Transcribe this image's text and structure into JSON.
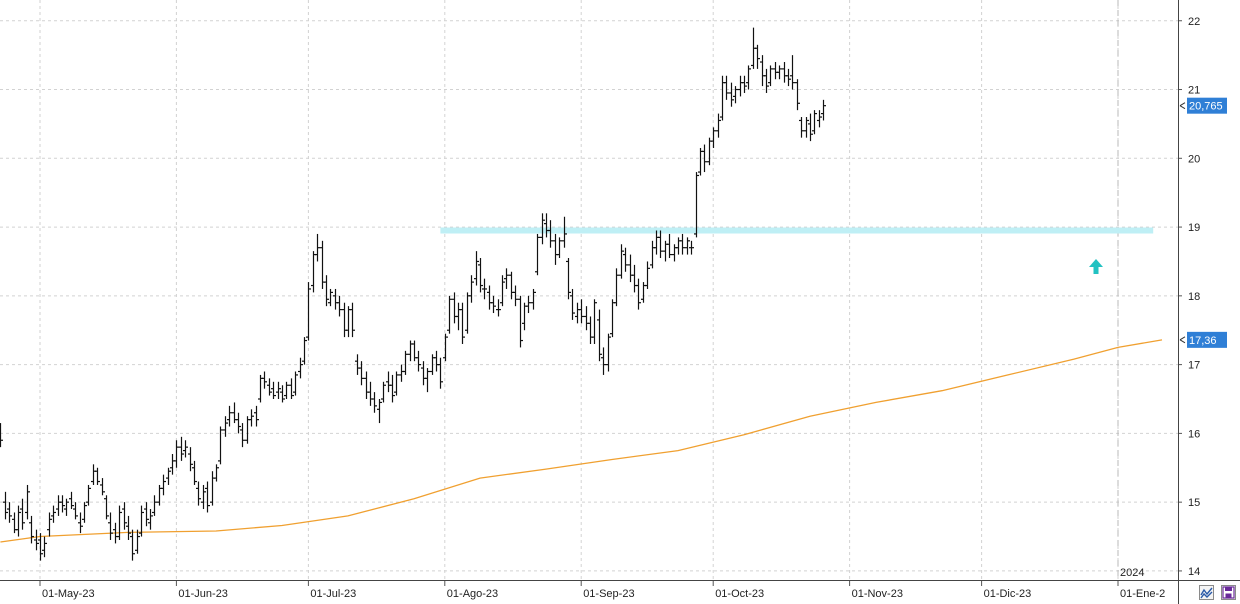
{
  "chart_data": {
    "type": "ohlc",
    "title": "",
    "xlabel": "",
    "ylabel": "",
    "ylim": [
      13.65,
      22.2
    ],
    "y_ticks": [
      14,
      15,
      16,
      17,
      18,
      19,
      20,
      21,
      22
    ],
    "grid": true,
    "x_ticks": [
      {
        "day": 0,
        "label": "01-May-23"
      },
      {
        "day": 31,
        "label": "01-Jun-23"
      },
      {
        "day": 61,
        "label": "01-Jul-23"
      },
      {
        "day": 92,
        "label": "01-Ago-23"
      },
      {
        "day": 123,
        "label": "01-Sep-23"
      },
      {
        "day": 153,
        "label": "01-Oct-23"
      },
      {
        "day": 184,
        "label": "01-Nov-23"
      },
      {
        "day": 214,
        "label": "01-Dic-23"
      },
      {
        "day": 245,
        "label": "01-Ene-2"
      }
    ],
    "year_marker": {
      "day": 245,
      "label": "2024"
    },
    "last_price": {
      "value": 20.765,
      "label": "20,765",
      "color": "#2f7fd6"
    },
    "ma_last": {
      "value": 17.36,
      "label": "17,36",
      "color": "#2f7fd6"
    },
    "resistance": {
      "value": 18.95,
      "from_day": 91,
      "to_day": 253,
      "color": "#bfeff5"
    },
    "signal_arrow": {
      "day": 240,
      "value": 18.42,
      "color": "#22c2c2"
    },
    "moving_average": {
      "color": "#f0a030",
      "points": [
        [
          -9,
          14.42
        ],
        [
          0,
          14.5
        ],
        [
          20,
          14.56
        ],
        [
          40,
          14.58
        ],
        [
          55,
          14.66
        ],
        [
          70,
          14.8
        ],
        [
          85,
          15.05
        ],
        [
          100,
          15.35
        ],
        [
          115,
          15.48
        ],
        [
          130,
          15.62
        ],
        [
          145,
          15.75
        ],
        [
          160,
          15.98
        ],
        [
          175,
          16.25
        ],
        [
          190,
          16.45
        ],
        [
          205,
          16.62
        ],
        [
          220,
          16.85
        ],
        [
          235,
          17.08
        ],
        [
          245,
          17.25
        ],
        [
          255,
          17.36
        ]
      ]
    },
    "ohlc": [
      [
        -9,
        16.05,
        16.15,
        15.8,
        15.9
      ],
      [
        -8,
        15.0,
        15.15,
        14.75,
        14.85
      ],
      [
        -7,
        14.9,
        15.0,
        14.7,
        14.8
      ],
      [
        -6,
        14.75,
        14.85,
        14.55,
        14.6
      ],
      [
        -5,
        14.6,
        14.95,
        14.5,
        14.85
      ],
      [
        -4,
        14.9,
        15.05,
        14.6,
        14.7
      ],
      [
        -3,
        14.85,
        15.25,
        14.75,
        15.15
      ],
      [
        -2,
        14.7,
        14.8,
        14.4,
        14.5
      ],
      [
        -1,
        14.45,
        14.6,
        14.3,
        14.4
      ],
      [
        0,
        14.45,
        14.55,
        14.15,
        14.25
      ],
      [
        1,
        14.3,
        14.5,
        14.2,
        14.4
      ],
      [
        2,
        14.6,
        14.85,
        14.5,
        14.75
      ],
      [
        3,
        14.8,
        14.95,
        14.7,
        14.85
      ],
      [
        4,
        14.9,
        15.1,
        14.8,
        15.0
      ],
      [
        5,
        15.0,
        15.1,
        14.85,
        14.95
      ],
      [
        6,
        14.9,
        15.05,
        14.8,
        15.0
      ],
      [
        7,
        15.05,
        15.15,
        14.9,
        14.95
      ],
      [
        8,
        14.9,
        15.0,
        14.75,
        14.8
      ],
      [
        9,
        14.7,
        14.85,
        14.55,
        14.65
      ],
      [
        10,
        14.75,
        15.0,
        14.7,
        14.95
      ],
      [
        11,
        15.0,
        15.25,
        14.95,
        15.2
      ],
      [
        12,
        15.3,
        15.55,
        15.25,
        15.45
      ],
      [
        13,
        15.45,
        15.5,
        15.25,
        15.3
      ],
      [
        14,
        15.25,
        15.35,
        15.1,
        15.15
      ],
      [
        15,
        15.05,
        15.1,
        14.75,
        14.8
      ],
      [
        16,
        14.7,
        14.85,
        14.45,
        14.55
      ],
      [
        17,
        14.6,
        14.7,
        14.4,
        14.5
      ],
      [
        18,
        14.5,
        14.95,
        14.45,
        14.85
      ],
      [
        19,
        14.9,
        15.0,
        14.6,
        14.7
      ],
      [
        20,
        14.65,
        14.8,
        14.45,
        14.55
      ],
      [
        21,
        14.5,
        14.6,
        14.15,
        14.25
      ],
      [
        22,
        14.3,
        14.6,
        14.25,
        14.5
      ],
      [
        23,
        14.55,
        14.95,
        14.5,
        14.85
      ],
      [
        24,
        14.9,
        15.0,
        14.65,
        14.75
      ],
      [
        25,
        14.7,
        14.9,
        14.6,
        14.8
      ],
      [
        26,
        14.85,
        15.1,
        14.8,
        15.0
      ],
      [
        27,
        15.0,
        15.25,
        14.95,
        15.2
      ],
      [
        28,
        15.2,
        15.4,
        15.1,
        15.3
      ],
      [
        29,
        15.35,
        15.5,
        15.25,
        15.45
      ],
      [
        30,
        15.5,
        15.7,
        15.4,
        15.6
      ],
      [
        31,
        15.6,
        15.9,
        15.5,
        15.8
      ],
      [
        32,
        15.8,
        15.95,
        15.6,
        15.7
      ],
      [
        33,
        15.75,
        15.9,
        15.65,
        15.8
      ],
      [
        34,
        15.7,
        15.8,
        15.45,
        15.55
      ],
      [
        35,
        15.5,
        15.6,
        15.25,
        15.3
      ],
      [
        36,
        15.2,
        15.3,
        14.95,
        15.05
      ],
      [
        37,
        15.0,
        15.25,
        14.9,
        15.15
      ],
      [
        38,
        15.2,
        15.3,
        14.85,
        14.95
      ],
      [
        39,
        15.0,
        15.45,
        14.95,
        15.35
      ],
      [
        40,
        15.35,
        15.55,
        15.3,
        15.5
      ],
      [
        41,
        15.6,
        16.1,
        15.55,
        16.05
      ],
      [
        42,
        16.05,
        16.25,
        15.95,
        16.15
      ],
      [
        43,
        16.2,
        16.4,
        16.1,
        16.3
      ],
      [
        44,
        16.3,
        16.45,
        16.15,
        16.2
      ],
      [
        45,
        16.2,
        16.3,
        16.0,
        16.1
      ],
      [
        46,
        16.05,
        16.15,
        15.8,
        15.9
      ],
      [
        47,
        15.9,
        16.25,
        15.85,
        16.2
      ],
      [
        48,
        16.2,
        16.35,
        16.1,
        16.25
      ],
      [
        49,
        16.3,
        16.4,
        16.1,
        16.2
      ],
      [
        50,
        16.5,
        16.85,
        16.45,
        16.8
      ],
      [
        51,
        16.8,
        16.9,
        16.65,
        16.75
      ],
      [
        52,
        16.7,
        16.8,
        16.55,
        16.6
      ],
      [
        53,
        16.65,
        16.75,
        16.5,
        16.55
      ],
      [
        54,
        16.6,
        16.75,
        16.5,
        16.65
      ],
      [
        55,
        16.6,
        16.7,
        16.45,
        16.5
      ],
      [
        56,
        16.55,
        16.75,
        16.5,
        16.7
      ],
      [
        57,
        16.7,
        16.8,
        16.5,
        16.55
      ],
      [
        58,
        16.6,
        16.9,
        16.55,
        16.85
      ],
      [
        59,
        16.9,
        17.1,
        16.8,
        17.0
      ],
      [
        60,
        17.05,
        17.4,
        17.0,
        17.35
      ],
      [
        61,
        17.4,
        18.2,
        17.35,
        18.1
      ],
      [
        62,
        18.15,
        18.65,
        18.05,
        18.6
      ],
      [
        63,
        18.6,
        18.9,
        18.5,
        18.7
      ],
      [
        64,
        18.7,
        18.8,
        18.1,
        18.2
      ],
      [
        65,
        18.2,
        18.3,
        17.85,
        17.95
      ],
      [
        66,
        17.9,
        18.1,
        17.85,
        18.05
      ],
      [
        67,
        18.0,
        18.1,
        17.8,
        17.9
      ],
      [
        68,
        17.9,
        18.0,
        17.7,
        17.8
      ],
      [
        69,
        17.8,
        17.9,
        17.4,
        17.5
      ],
      [
        70,
        17.5,
        17.85,
        17.4,
        17.8
      ],
      [
        71,
        17.8,
        17.9,
        17.4,
        17.5
      ],
      [
        72,
        17.05,
        17.15,
        16.85,
        16.95
      ],
      [
        73,
        16.95,
        17.05,
        16.7,
        16.8
      ],
      [
        74,
        16.8,
        16.9,
        16.5,
        16.6
      ],
      [
        75,
        16.6,
        16.75,
        16.4,
        16.5
      ],
      [
        76,
        16.5,
        16.6,
        16.3,
        16.4
      ],
      [
        77,
        16.35,
        16.5,
        16.15,
        16.45
      ],
      [
        78,
        16.5,
        16.75,
        16.45,
        16.7
      ],
      [
        79,
        16.75,
        16.9,
        16.6,
        16.7
      ],
      [
        80,
        16.7,
        16.85,
        16.45,
        16.55
      ],
      [
        81,
        16.6,
        16.9,
        16.55,
        16.85
      ],
      [
        82,
        16.85,
        17.0,
        16.75,
        16.9
      ],
      [
        83,
        16.9,
        17.2,
        16.85,
        17.15
      ],
      [
        84,
        17.15,
        17.35,
        17.05,
        17.3
      ],
      [
        85,
        17.3,
        17.35,
        17.05,
        17.1
      ],
      [
        86,
        17.1,
        17.2,
        16.9,
        17.0
      ],
      [
        87,
        16.95,
        17.05,
        16.7,
        16.8
      ],
      [
        88,
        16.8,
        16.95,
        16.6,
        16.9
      ],
      [
        89,
        16.9,
        17.15,
        16.85,
        17.1
      ],
      [
        90,
        17.1,
        17.2,
        16.9,
        17.0
      ],
      [
        91,
        17.0,
        17.1,
        16.65,
        16.75
      ],
      [
        92,
        17.1,
        17.45,
        17.05,
        17.4
      ],
      [
        93,
        17.5,
        18.0,
        17.45,
        17.95
      ],
      [
        94,
        17.95,
        18.05,
        17.6,
        17.7
      ],
      [
        95,
        17.7,
        17.9,
        17.5,
        17.8
      ],
      [
        96,
        17.8,
        17.9,
        17.3,
        17.4
      ],
      [
        97,
        17.5,
        18.05,
        17.45,
        18.0
      ],
      [
        98,
        18.0,
        18.3,
        17.9,
        18.2
      ],
      [
        99,
        18.25,
        18.65,
        18.15,
        18.5
      ],
      [
        100,
        18.45,
        18.55,
        18.05,
        18.15
      ],
      [
        101,
        18.1,
        18.25,
        17.95,
        18.1
      ],
      [
        102,
        18.05,
        18.15,
        17.8,
        17.9
      ],
      [
        103,
        17.9,
        18.0,
        17.75,
        17.85
      ],
      [
        104,
        17.8,
        17.95,
        17.7,
        17.8
      ],
      [
        105,
        17.9,
        18.3,
        17.85,
        18.2
      ],
      [
        106,
        18.25,
        18.4,
        18.1,
        18.3
      ],
      [
        107,
        18.3,
        18.35,
        17.95,
        18.05
      ],
      [
        108,
        18.05,
        18.15,
        17.85,
        17.95
      ],
      [
        109,
        17.95,
        18.0,
        17.25,
        17.35
      ],
      [
        110,
        17.6,
        17.9,
        17.5,
        17.85
      ],
      [
        111,
        17.85,
        18.0,
        17.75,
        17.9
      ],
      [
        112,
        17.9,
        18.1,
        17.8,
        18.05
      ],
      [
        113,
        18.35,
        18.9,
        18.3,
        18.85
      ],
      [
        114,
        18.85,
        19.2,
        18.75,
        19.1
      ],
      [
        115,
        19.05,
        19.2,
        18.85,
        18.95
      ],
      [
        116,
        18.95,
        19.1,
        18.7,
        18.8
      ],
      [
        117,
        18.8,
        18.9,
        18.45,
        18.6
      ],
      [
        118,
        18.6,
        18.85,
        18.55,
        18.8
      ],
      [
        119,
        18.8,
        19.15,
        18.7,
        18.9
      ],
      [
        120,
        18.5,
        18.55,
        17.95,
        18.05
      ],
      [
        121,
        18.0,
        18.1,
        17.65,
        17.75
      ],
      [
        122,
        17.7,
        17.9,
        17.6,
        17.8
      ],
      [
        123,
        17.8,
        17.95,
        17.6,
        17.7
      ],
      [
        124,
        17.7,
        17.85,
        17.5,
        17.6
      ],
      [
        125,
        17.6,
        17.7,
        17.3,
        17.4
      ],
      [
        126,
        17.4,
        17.95,
        17.3,
        17.9
      ],
      [
        127,
        17.65,
        17.8,
        17.05,
        17.15
      ],
      [
        128,
        17.1,
        17.25,
        16.85,
        17.0
      ],
      [
        129,
        17.0,
        17.45,
        16.9,
        17.4
      ],
      [
        130,
        17.45,
        17.95,
        17.4,
        17.9
      ],
      [
        131,
        17.9,
        18.4,
        17.85,
        18.3
      ],
      [
        132,
        18.3,
        18.75,
        18.25,
        18.65
      ],
      [
        133,
        18.6,
        18.7,
        18.35,
        18.45
      ],
      [
        134,
        18.45,
        18.6,
        18.2,
        18.3
      ],
      [
        135,
        18.3,
        18.45,
        18.05,
        18.15
      ],
      [
        136,
        18.15,
        18.25,
        17.8,
        17.9
      ],
      [
        137,
        17.95,
        18.2,
        17.9,
        18.15
      ],
      [
        138,
        18.15,
        18.5,
        18.1,
        18.4
      ],
      [
        139,
        18.45,
        18.8,
        18.4,
        18.7
      ],
      [
        140,
        18.7,
        18.95,
        18.6,
        18.85
      ],
      [
        141,
        18.85,
        18.95,
        18.55,
        18.65
      ],
      [
        142,
        18.65,
        18.8,
        18.5,
        18.75
      ],
      [
        143,
        18.75,
        18.9,
        18.55,
        18.6
      ],
      [
        144,
        18.6,
        18.75,
        18.5,
        18.7
      ],
      [
        145,
        18.7,
        18.85,
        18.6,
        18.8
      ],
      [
        146,
        18.8,
        18.9,
        18.6,
        18.7
      ],
      [
        147,
        18.7,
        18.85,
        18.6,
        18.8
      ],
      [
        148,
        18.7,
        18.8,
        18.6,
        18.7
      ],
      [
        149,
        18.9,
        19.8,
        18.85,
        19.75
      ],
      [
        150,
        19.8,
        20.15,
        19.75,
        20.1
      ],
      [
        151,
        20.1,
        20.2,
        19.8,
        19.95
      ],
      [
        152,
        19.95,
        20.3,
        19.9,
        20.25
      ],
      [
        153,
        20.25,
        20.45,
        20.15,
        20.4
      ],
      [
        154,
        20.4,
        20.65,
        20.3,
        20.55
      ],
      [
        155,
        20.6,
        21.2,
        20.55,
        21.1
      ],
      [
        156,
        21.1,
        21.2,
        20.85,
        20.95
      ],
      [
        157,
        20.95,
        21.1,
        20.75,
        20.85
      ],
      [
        158,
        20.9,
        21.05,
        20.8,
        21.0
      ],
      [
        159,
        21.0,
        21.2,
        20.9,
        21.1
      ],
      [
        160,
        21.1,
        21.2,
        20.95,
        21.05
      ],
      [
        161,
        21.1,
        21.35,
        21.0,
        21.3
      ],
      [
        162,
        21.35,
        21.9,
        21.3,
        21.6
      ],
      [
        163,
        21.6,
        21.65,
        21.3,
        21.45
      ],
      [
        164,
        21.4,
        21.5,
        21.05,
        21.2
      ],
      [
        165,
        21.2,
        21.3,
        20.95,
        21.05
      ],
      [
        166,
        21.1,
        21.35,
        21.05,
        21.3
      ],
      [
        167,
        21.3,
        21.4,
        21.15,
        21.25
      ],
      [
        168,
        21.25,
        21.35,
        21.15,
        21.3
      ],
      [
        169,
        21.3,
        21.4,
        21.1,
        21.2
      ],
      [
        170,
        21.2,
        21.3,
        21.05,
        21.15
      ],
      [
        171,
        21.2,
        21.5,
        21.0,
        21.1
      ],
      [
        172,
        21.1,
        21.15,
        20.7,
        20.8
      ],
      [
        173,
        20.55,
        20.6,
        20.3,
        20.4
      ],
      [
        174,
        20.4,
        20.6,
        20.3,
        20.55
      ],
      [
        175,
        20.5,
        20.65,
        20.25,
        20.35
      ],
      [
        176,
        20.4,
        20.7,
        20.35,
        20.65
      ],
      [
        177,
        20.55,
        20.7,
        20.45,
        20.6
      ],
      [
        178,
        20.65,
        20.85,
        20.55,
        20.765
      ]
    ]
  },
  "toolbar": {
    "left_icon": "chart-type-icon",
    "right_icon": "save-icon"
  }
}
